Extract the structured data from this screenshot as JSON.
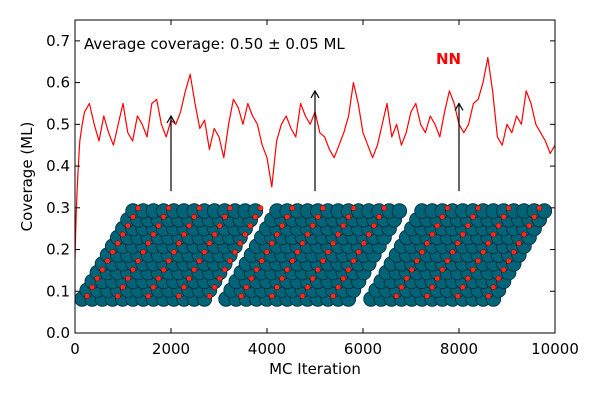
{
  "chart_data": {
    "type": "line",
    "xlabel": "MC Iteration",
    "ylabel": "Coverage (ML)",
    "xlim": [
      0,
      10000
    ],
    "ylim": [
      0.0,
      0.75
    ],
    "xticks": [
      0,
      2000,
      4000,
      6000,
      8000,
      10000
    ],
    "xtick_labels": [
      "0",
      "2000",
      "4000",
      "6000",
      "8000",
      "10000"
    ],
    "yticks": [
      0.0,
      0.1,
      0.2,
      0.3,
      0.4,
      0.5,
      0.6,
      0.7
    ],
    "ytick_labels": [
      "0.0",
      "0.1",
      "0.2",
      "0.3",
      "0.4",
      "0.5",
      "0.6",
      "0.7"
    ],
    "grid": false,
    "annotation": "Average coverage: 0.50 ± 0.05 ML",
    "series_label": "NN",
    "series_color": "#ff0000",
    "series": [
      {
        "x": [
          0,
          20,
          40,
          60,
          80,
          100,
          150,
          200,
          300,
          400,
          500,
          600,
          700,
          800,
          900,
          1000,
          1100,
          1200,
          1300,
          1400,
          1500,
          1600,
          1700,
          1800,
          1900,
          2000,
          2100,
          2200,
          2300,
          2400,
          2500,
          2600,
          2700,
          2800,
          2900,
          3000,
          3100,
          3200,
          3300,
          3400,
          3500,
          3600,
          3700,
          3800,
          3900,
          4000,
          4100,
          4200,
          4300,
          4400,
          4500,
          4600,
          4700,
          4800,
          4900,
          5000,
          5100,
          5200,
          5300,
          5400,
          5500,
          5600,
          5700,
          5800,
          5900,
          6000,
          6100,
          6200,
          6300,
          6400,
          6500,
          6600,
          6700,
          6800,
          6900,
          7000,
          7100,
          7200,
          7300,
          7400,
          7500,
          7600,
          7700,
          7800,
          7900,
          8000,
          8100,
          8200,
          8300,
          8400,
          8500,
          8600,
          8700,
          8800,
          8900,
          9000,
          9100,
          9200,
          9300,
          9400,
          9500,
          9600,
          9700,
          9800,
          9900,
          10000
        ],
        "y": [
          0.18,
          0.27,
          0.33,
          0.38,
          0.42,
          0.46,
          0.5,
          0.53,
          0.55,
          0.5,
          0.46,
          0.52,
          0.48,
          0.45,
          0.5,
          0.55,
          0.48,
          0.46,
          0.52,
          0.5,
          0.47,
          0.55,
          0.56,
          0.5,
          0.47,
          0.51,
          0.5,
          0.53,
          0.58,
          0.62,
          0.55,
          0.49,
          0.51,
          0.44,
          0.49,
          0.47,
          0.42,
          0.5,
          0.56,
          0.54,
          0.5,
          0.55,
          0.52,
          0.5,
          0.45,
          0.42,
          0.35,
          0.46,
          0.5,
          0.52,
          0.49,
          0.47,
          0.55,
          0.52,
          0.5,
          0.53,
          0.48,
          0.47,
          0.44,
          0.42,
          0.45,
          0.48,
          0.52,
          0.6,
          0.55,
          0.48,
          0.45,
          0.42,
          0.45,
          0.5,
          0.55,
          0.47,
          0.5,
          0.45,
          0.48,
          0.53,
          0.55,
          0.5,
          0.48,
          0.52,
          0.5,
          0.47,
          0.53,
          0.58,
          0.55,
          0.5,
          0.48,
          0.5,
          0.55,
          0.56,
          0.6,
          0.66,
          0.58,
          0.47,
          0.45,
          0.5,
          0.48,
          0.52,
          0.5,
          0.58,
          0.55,
          0.5,
          0.48,
          0.46,
          0.43,
          0.45
        ]
      }
    ],
    "arrows": [
      {
        "x": 2000,
        "y_tail": 0.34,
        "y_head": 0.52
      },
      {
        "x": 5000,
        "y_tail": 0.34,
        "y_head": 0.58
      },
      {
        "x": 8000,
        "y_tail": 0.34,
        "y_head": 0.55
      }
    ],
    "surface_colors": {
      "atom_fill": "#006478",
      "atom_stroke": "#002c36",
      "adsorbate_fill": "#ff2a1a",
      "adsorbate_stroke": "#7a0000"
    }
  }
}
